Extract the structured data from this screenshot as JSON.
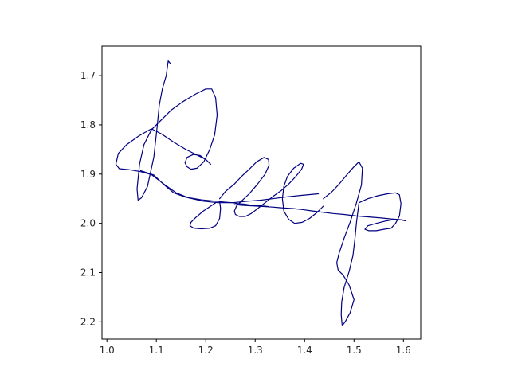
{
  "chart_data": {
    "type": "line",
    "title": "",
    "xlabel": "",
    "ylabel": "",
    "xlim": [
      0.99,
      1.635
    ],
    "ylim": [
      2.235,
      1.64
    ],
    "y_inverted": true,
    "grid": false,
    "legend": "none",
    "x_ticks": [
      "1.0",
      "1.1",
      "1.2",
      "1.3",
      "1.4",
      "1.5",
      "1.6"
    ],
    "x_tick_values": [
      1.0,
      1.1,
      1.2,
      1.3,
      1.4,
      1.5,
      1.6
    ],
    "y_ticks": [
      "1.7",
      "1.8",
      "1.9",
      "2.0",
      "2.1",
      "2.2"
    ],
    "y_tick_values": [
      1.7,
      1.8,
      1.9,
      2.0,
      2.1,
      2.2
    ],
    "series": [
      {
        "color": "#000080",
        "x": [
          1.128,
          1.124,
          1.12,
          1.112,
          1.106,
          1.101,
          1.095,
          1.082,
          1.07,
          1.063,
          1.061,
          1.066,
          1.075,
          1.09,
          1.11,
          1.13,
          1.155,
          1.18,
          1.2,
          1.212,
          1.22,
          1.223,
          1.218,
          1.208,
          1.196,
          1.182,
          1.17,
          1.162,
          1.158,
          1.162,
          1.175,
          1.188,
          1.2,
          1.21,
          1.2,
          1.18,
          1.16,
          1.135,
          1.11,
          1.09,
          1.065,
          1.04,
          1.023,
          1.018,
          1.025,
          1.045,
          1.068,
          1.09,
          1.115,
          1.14,
          1.165,
          1.195,
          1.225,
          1.255,
          1.285,
          1.31,
          1.335,
          1.365,
          1.395,
          1.428
        ],
        "y": [
          1.675,
          1.67,
          1.7,
          1.727,
          1.76,
          1.81,
          1.865,
          1.925,
          1.948,
          1.953,
          1.93,
          1.88,
          1.84,
          1.81,
          1.79,
          1.77,
          1.752,
          1.737,
          1.727,
          1.727,
          1.745,
          1.78,
          1.82,
          1.85,
          1.875,
          1.888,
          1.89,
          1.885,
          1.877,
          1.866,
          1.86,
          1.862,
          1.87,
          1.88,
          1.87,
          1.86,
          1.85,
          1.835,
          1.818,
          1.808,
          1.822,
          1.84,
          1.858,
          1.88,
          1.889,
          1.891,
          1.895,
          1.901,
          1.92,
          1.938,
          1.948,
          1.955,
          1.958,
          1.958,
          1.955,
          1.953,
          1.95,
          1.946,
          1.943,
          1.94
        ]
      },
      {
        "color": "#000080",
        "x": [
          1.068,
          1.095,
          1.115,
          1.135,
          1.16,
          1.19,
          1.22,
          1.24,
          1.255,
          1.265,
          1.278,
          1.292,
          1.305,
          1.316,
          1.325,
          1.327,
          1.318,
          1.302,
          1.283,
          1.265,
          1.258,
          1.262,
          1.27,
          1.285,
          1.305,
          1.322,
          1.335,
          1.348,
          1.362,
          1.378,
          1.395,
          1.41,
          1.432,
          1.458,
          1.48,
          1.505,
          1.53,
          1.555,
          1.575,
          1.588,
          1.598,
          1.605
        ],
        "y": [
          1.893,
          1.902,
          1.921,
          1.938,
          1.947,
          1.952,
          1.955,
          1.957,
          1.958,
          1.96,
          1.961,
          1.963,
          1.964,
          1.965,
          1.966,
          1.966,
          1.965,
          1.964,
          1.963,
          1.962,
          1.962,
          1.962,
          1.963,
          1.964,
          1.965,
          1.966,
          1.967,
          1.968,
          1.969,
          1.97,
          1.972,
          1.974,
          1.977,
          1.98,
          1.982,
          1.985,
          1.987,
          1.989,
          1.991,
          1.992,
          1.993,
          1.995
        ]
      },
      {
        "color": "#000080",
        "x": [
          1.22,
          1.21,
          1.195,
          1.18,
          1.17,
          1.168,
          1.176,
          1.192,
          1.208,
          1.22,
          1.228,
          1.23,
          1.228
        ],
        "y": [
          1.958,
          1.965,
          1.975,
          1.988,
          1.998,
          2.005,
          2.01,
          2.011,
          2.01,
          2.005,
          1.99,
          1.97,
          1.955
        ]
      },
      {
        "color": "#000080",
        "x": [
          1.228,
          1.24,
          1.258,
          1.272,
          1.288,
          1.303,
          1.318,
          1.327,
          1.328,
          1.32,
          1.305,
          1.288,
          1.272,
          1.262,
          1.258,
          1.26,
          1.268,
          1.28,
          1.292,
          1.305,
          1.32,
          1.335,
          1.352,
          1.368,
          1.382,
          1.394,
          1.398,
          1.392,
          1.378,
          1.365,
          1.358,
          1.355,
          1.358,
          1.368,
          1.38,
          1.395,
          1.41,
          1.425,
          1.438
        ],
        "y": [
          1.95,
          1.935,
          1.92,
          1.905,
          1.89,
          1.875,
          1.866,
          1.87,
          1.882,
          1.9,
          1.92,
          1.94,
          1.955,
          1.965,
          1.975,
          1.982,
          1.986,
          1.986,
          1.98,
          1.97,
          1.958,
          1.946,
          1.934,
          1.92,
          1.905,
          1.89,
          1.88,
          1.878,
          1.888,
          1.905,
          1.925,
          1.95,
          1.975,
          1.992,
          2.0,
          1.998,
          1.99,
          1.978,
          1.965
        ]
      },
      {
        "color": "#000080",
        "x": [
          1.438,
          1.455,
          1.47,
          1.485,
          1.498,
          1.51,
          1.517,
          1.515,
          1.505,
          1.492,
          1.48,
          1.47,
          1.465,
          1.468,
          1.478,
          1.49,
          1.5,
          1.492,
          1.482,
          1.476,
          1.474,
          1.475,
          1.48,
          1.49,
          1.498,
          1.502,
          1.505,
          1.51,
          1.528,
          1.548,
          1.568,
          1.584,
          1.592,
          1.595,
          1.592,
          1.584,
          1.575,
          1.56,
          1.545,
          1.53,
          1.522,
          1.528,
          1.545,
          1.565,
          1.582,
          1.595,
          1.605
        ],
        "y": [
          1.95,
          1.936,
          1.92,
          1.902,
          1.887,
          1.875,
          1.888,
          1.922,
          1.958,
          1.998,
          2.03,
          2.06,
          2.08,
          2.095,
          2.105,
          2.125,
          2.155,
          2.182,
          2.2,
          2.208,
          2.185,
          2.16,
          2.13,
          2.098,
          2.065,
          2.03,
          1.998,
          1.958,
          1.95,
          1.944,
          1.94,
          1.938,
          1.942,
          1.96,
          1.985,
          2.0,
          2.01,
          2.012,
          2.015,
          2.015,
          2.012,
          2.005,
          2.0,
          1.995,
          1.992,
          1.993,
          1.995
        ]
      }
    ]
  }
}
